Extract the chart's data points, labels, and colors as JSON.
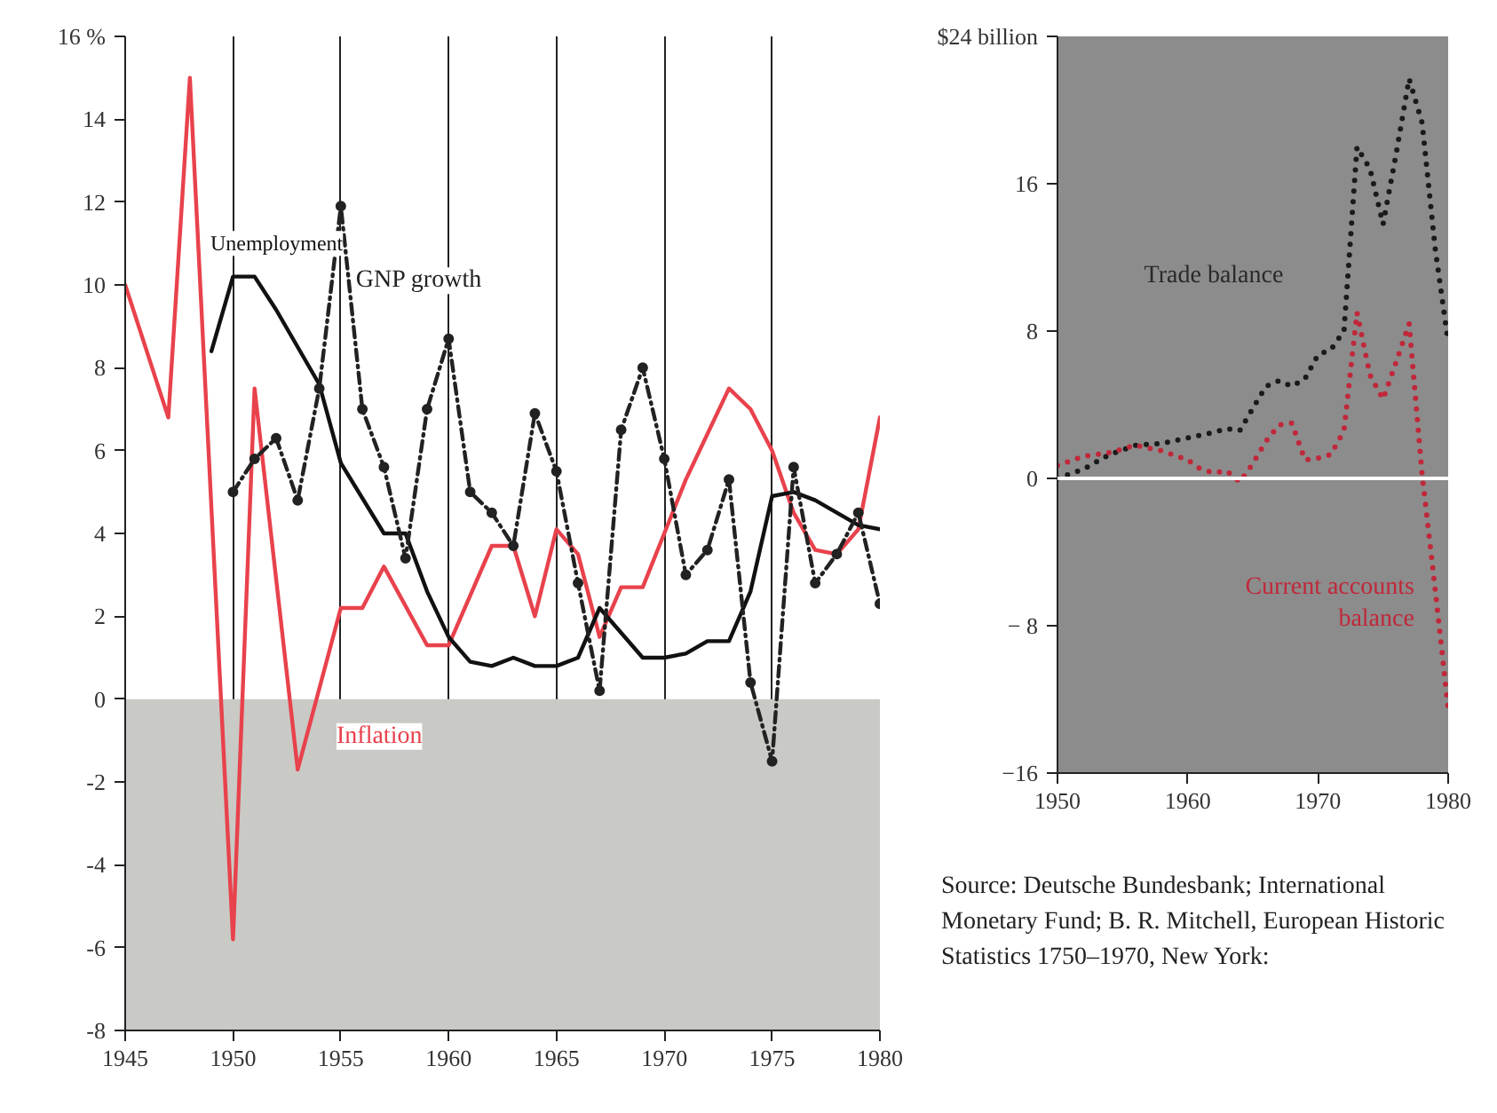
{
  "chart_data": [
    {
      "type": "line",
      "xlim": [
        1945,
        1980
      ],
      "ylim": [
        -8,
        16
      ],
      "xticks": [
        1945,
        1950,
        1955,
        1960,
        1965,
        1970,
        1975,
        1980
      ],
      "yticks": [
        {
          "value": 16,
          "label": "16 %"
        },
        14,
        12,
        10,
        8,
        6,
        4,
        2,
        0,
        -2,
        -4,
        -6,
        -8
      ],
      "grid": "x",
      "bands": [
        {
          "axis": "y",
          "from": -8,
          "to": 0,
          "color": "#c9c9c5"
        }
      ],
      "series": [
        {
          "name": "Inflation",
          "color": "#e8424c",
          "line_style": "solid",
          "marker": "none",
          "x": [
            1945,
            1947,
            1948,
            1950,
            1951,
            1953,
            1955,
            1956,
            1957,
            1959,
            1960,
            1962,
            1963,
            1964,
            1965,
            1966,
            1967,
            1968,
            1969,
            1970,
            1971,
            1973,
            1974,
            1975,
            1976,
            1977,
            1978,
            1979,
            1980
          ],
          "values": [
            10,
            6.8,
            15,
            -5.8,
            7.5,
            -1.7,
            2.2,
            2.2,
            3.2,
            1.3,
            1.3,
            3.7,
            3.7,
            2.0,
            4.1,
            3.5,
            1.5,
            2.7,
            2.7,
            4.0,
            5.3,
            7.5,
            7.0,
            6.0,
            4.5,
            3.6,
            3.5,
            4.1,
            6.8
          ]
        },
        {
          "name": "Unemployment",
          "color": "#111111",
          "line_style": "solid",
          "marker": "none",
          "x": [
            1949,
            1950,
            1951,
            1952,
            1954,
            1955,
            1957,
            1958,
            1959,
            1960,
            1961,
            1962,
            1963,
            1964,
            1965,
            1966,
            1967,
            1968,
            1969,
            1970,
            1971,
            1972,
            1973,
            1974,
            1975,
            1976,
            1977,
            1978,
            1979,
            1980
          ],
          "values": [
            8.4,
            10.2,
            10.2,
            9.4,
            7.6,
            5.7,
            4.0,
            4.0,
            2.6,
            1.5,
            0.9,
            0.8,
            1.0,
            0.8,
            0.8,
            1.0,
            2.2,
            1.6,
            1.0,
            1.0,
            1.1,
            1.4,
            1.4,
            2.6,
            4.9,
            5.0,
            4.8,
            4.5,
            4.2,
            4.1
          ]
        },
        {
          "name": "GNP growth",
          "color": "#222222",
          "line_style": "dashed",
          "marker": "circle",
          "x": [
            1950,
            1951,
            1952,
            1953,
            1954,
            1955,
            1956,
            1957,
            1958,
            1959,
            1960,
            1961,
            1962,
            1963,
            1964,
            1965,
            1966,
            1967,
            1968,
            1969,
            1970,
            1971,
            1972,
            1973,
            1974,
            1975,
            1976,
            1977,
            1978,
            1979,
            1980
          ],
          "values": [
            5.0,
            5.8,
            6.3,
            4.8,
            7.5,
            11.9,
            7.0,
            5.6,
            3.4,
            7.0,
            8.7,
            5.0,
            4.5,
            3.7,
            6.9,
            5.5,
            2.8,
            0.2,
            6.5,
            8.0,
            5.8,
            3.0,
            3.6,
            5.3,
            0.4,
            -1.5,
            5.6,
            2.8,
            3.5,
            4.5,
            2.3
          ]
        }
      ]
    },
    {
      "type": "line",
      "xlim": [
        1950,
        1980
      ],
      "ylim": [
        -16,
        24
      ],
      "xticks": [
        1950,
        1960,
        1970,
        1980
      ],
      "yticks": [
        {
          "value": 24,
          "label": "$24 billion"
        },
        16,
        8,
        0,
        {
          "value": -8,
          "label": "− 8"
        },
        {
          "value": -16,
          "label": "−16"
        }
      ],
      "grid": false,
      "bands": [
        {
          "axis": "y",
          "from": -16,
          "to": 24,
          "color": "#8c8c8c"
        }
      ],
      "ref_lines": [
        {
          "axis": "y",
          "value": 0,
          "color": "#ffffff"
        }
      ],
      "annotations": [
        "Source: Deutsche Bundesbank; International Monetary Fund; B. R. Mitchell, European Historic Statistics 1750–1970, New York:"
      ],
      "series": [
        {
          "name": "Trade balance",
          "color": "#1a1a1a",
          "line_style": "dotted",
          "marker": "none",
          "x": [
            1950,
            1952,
            1954,
            1956,
            1958,
            1960,
            1962,
            1963,
            1964,
            1965,
            1966,
            1967,
            1968,
            1969,
            1970,
            1971,
            1972,
            1973,
            1974,
            1975,
            1976,
            1977,
            1978,
            1979,
            1980
          ],
          "values": [
            0,
            0.5,
            1.3,
            1.8,
            1.9,
            2.2,
            2.5,
            2.7,
            2.6,
            3.8,
            5.0,
            5.3,
            5.0,
            5.4,
            6.7,
            7.0,
            8.0,
            18.0,
            16.8,
            13.8,
            17.6,
            21.7,
            19.3,
            12.5,
            7.4
          ]
        },
        {
          "name": "Current accounts balance",
          "color": "#c0283a",
          "line_style": "dotted",
          "marker": "none",
          "x": [
            1950,
            1952,
            1954,
            1956,
            1958,
            1960,
            1961,
            1962,
            1963,
            1964,
            1965,
            1966,
            1967,
            1968,
            1969,
            1970,
            1971,
            1972,
            1973,
            1974,
            1975,
            1976,
            1977,
            1978,
            1979,
            1980
          ],
          "values": [
            0.7,
            1.2,
            1.4,
            1.8,
            1.5,
            1.0,
            0.5,
            0.3,
            0.4,
            -0.2,
            0.8,
            2.0,
            2.9,
            3.0,
            1.0,
            1.1,
            1.3,
            2.6,
            9.0,
            5.6,
            4.3,
            6.3,
            8.4,
            0.2,
            -6.0,
            -12.5
          ]
        }
      ]
    }
  ]
}
